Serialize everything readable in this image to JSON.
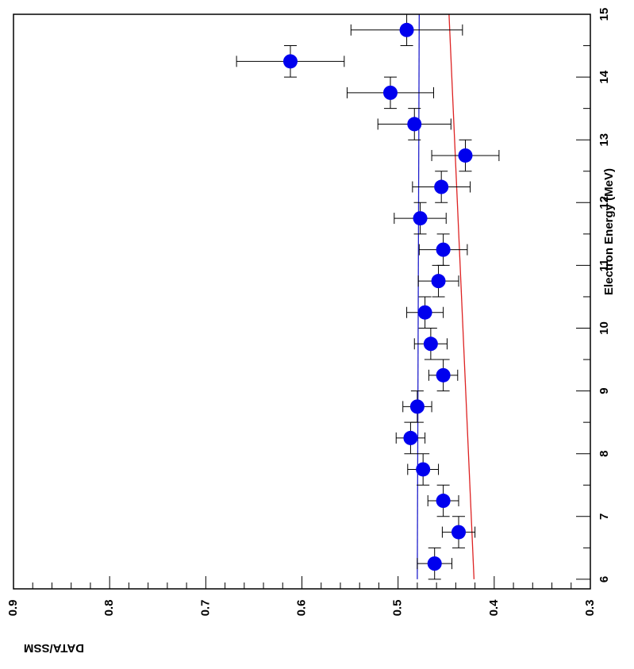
{
  "chart_data": {
    "type": "scatter",
    "orientation": "rotated-90-clockwise",
    "xlabel": "Electron Energy (MeV)",
    "ylabel": "DATA/SSM",
    "xlim": [
      5.5,
      15
    ],
    "ylim": [
      0.3,
      0.9
    ],
    "x_ticks": [
      6,
      7,
      8,
      9,
      10,
      11,
      12,
      13,
      14,
      15
    ],
    "x_tick_labels": [
      "6",
      "7",
      "8",
      "9",
      "10",
      "11",
      "12",
      "13",
      "14",
      "15"
    ],
    "y_ticks": [
      0.3,
      0.4,
      0.5,
      0.6,
      0.7,
      0.8,
      0.9
    ],
    "y_tick_labels": [
      "0.3",
      "0.4",
      "0.5",
      "0.6",
      "0.7",
      "0.8",
      "0.9"
    ],
    "grid": false,
    "colors": {
      "points": "#0000ee",
      "line_flat": "#2020cc",
      "line_sloped": "#dd2222",
      "axes": "#000000"
    },
    "points": [
      {
        "x": 6.25,
        "y": 0.462,
        "yerr": 0.018,
        "xerr": 0.25
      },
      {
        "x": 6.75,
        "y": 0.437,
        "yerr": 0.017,
        "xerr": 0.25
      },
      {
        "x": 7.25,
        "y": 0.453,
        "yerr": 0.016,
        "xerr": 0.25
      },
      {
        "x": 7.75,
        "y": 0.474,
        "yerr": 0.016,
        "xerr": 0.25
      },
      {
        "x": 8.25,
        "y": 0.487,
        "yerr": 0.015,
        "xerr": 0.25
      },
      {
        "x": 8.75,
        "y": 0.48,
        "yerr": 0.015,
        "xerr": 0.25
      },
      {
        "x": 9.25,
        "y": 0.453,
        "yerr": 0.015,
        "xerr": 0.25
      },
      {
        "x": 9.75,
        "y": 0.466,
        "yerr": 0.017,
        "xerr": 0.25
      },
      {
        "x": 10.25,
        "y": 0.472,
        "yerr": 0.019,
        "xerr": 0.25
      },
      {
        "x": 10.75,
        "y": 0.458,
        "yerr": 0.021,
        "xerr": 0.25
      },
      {
        "x": 11.25,
        "y": 0.453,
        "yerr": 0.025,
        "xerr": 0.25
      },
      {
        "x": 11.75,
        "y": 0.477,
        "yerr": 0.027,
        "xerr": 0.25
      },
      {
        "x": 12.25,
        "y": 0.455,
        "yerr": 0.03,
        "xerr": 0.25
      },
      {
        "x": 12.75,
        "y": 0.43,
        "yerr": 0.035,
        "xerr": 0.25
      },
      {
        "x": 13.25,
        "y": 0.483,
        "yerr": 0.038,
        "xerr": 0.25
      },
      {
        "x": 13.75,
        "y": 0.508,
        "yerr": 0.045,
        "xerr": 0.25
      },
      {
        "x": 14.25,
        "y": 0.612,
        "yerr": 0.056,
        "xerr": 0.25
      },
      {
        "x": 14.75,
        "y": 0.491,
        "yerr": 0.058,
        "xerr": 0.25
      }
    ],
    "lines": [
      {
        "color": "#2020cc",
        "x": [
          6.0,
          15.0
        ],
        "y": [
          0.48,
          0.478
        ]
      },
      {
        "color": "#dd2222",
        "x": [
          6.0,
          15.0
        ],
        "y": [
          0.421,
          0.447
        ]
      }
    ]
  }
}
